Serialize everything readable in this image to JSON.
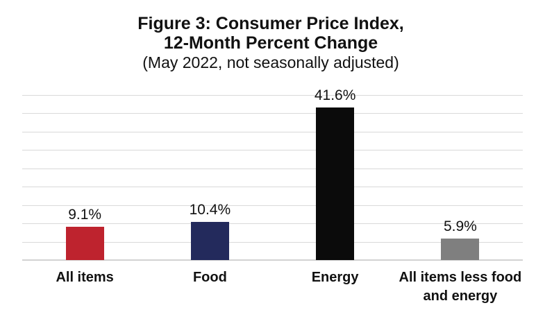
{
  "chart_data": {
    "type": "bar",
    "title_line1": "Figure 3: Consumer Price Index,",
    "title_line2": "12-Month Percent Change",
    "subtitle": "(May 2022, not seasonally adjusted)",
    "categories": [
      "All items",
      "Food",
      "Energy",
      "All items less food and energy"
    ],
    "values": [
      9.1,
      10.4,
      41.6,
      5.9
    ],
    "data_labels": [
      "9.1%",
      "10.4%",
      "41.6%",
      "5.9%"
    ],
    "bar_colors": [
      "#be232e",
      "#232a5c",
      "#0b0b0b",
      "#7f7f7f"
    ],
    "xlabel": "",
    "ylabel": "",
    "ylim": [
      0,
      45
    ],
    "gridline_step": 5,
    "grid": "horizontal gridlines, no y-axis tick labels",
    "legend_position": "none"
  },
  "style_colors": {
    "background": "#ffffff",
    "gridline": "#d9d9d9",
    "axis_line": "#d2d2d2",
    "text": "#111111"
  }
}
